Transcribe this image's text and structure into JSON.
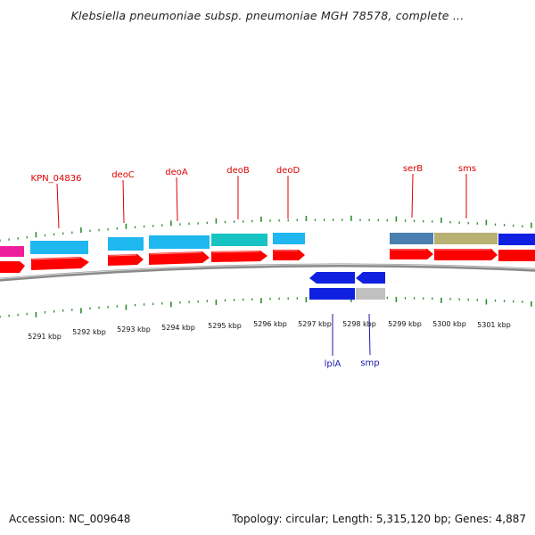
{
  "title": "Klebsiella pneumoniae subsp. pneumoniae MGH 78578, complete ...",
  "footer": {
    "accession": "Accession: NC_009648",
    "topology": "Topology: circular; Length: 5,315,120 bp; Genes: 4,887"
  },
  "colors": {
    "cds_red": "#ff0000",
    "label_red": "#dd0000",
    "label_blue": "#1a1ab0",
    "tick_green": "#2f8a2f",
    "backbone_gray": "#8a8a8a"
  },
  "kbp_labels": [
    "5291 kbp",
    "5292 kbp",
    "5293 kbp",
    "5294 kbp",
    "5295 kbp",
    "5296 kbp",
    "5297 kbp",
    "5298 kbp",
    "5299 kbp",
    "5300 kbp",
    "5301 kbp"
  ],
  "gene_labels_top": [
    "KPN_04836",
    "deoC",
    "deoA",
    "deoB",
    "deoD",
    "serB",
    "sms"
  ],
  "gene_labels_bottom": [
    "lplA",
    "smp"
  ]
}
